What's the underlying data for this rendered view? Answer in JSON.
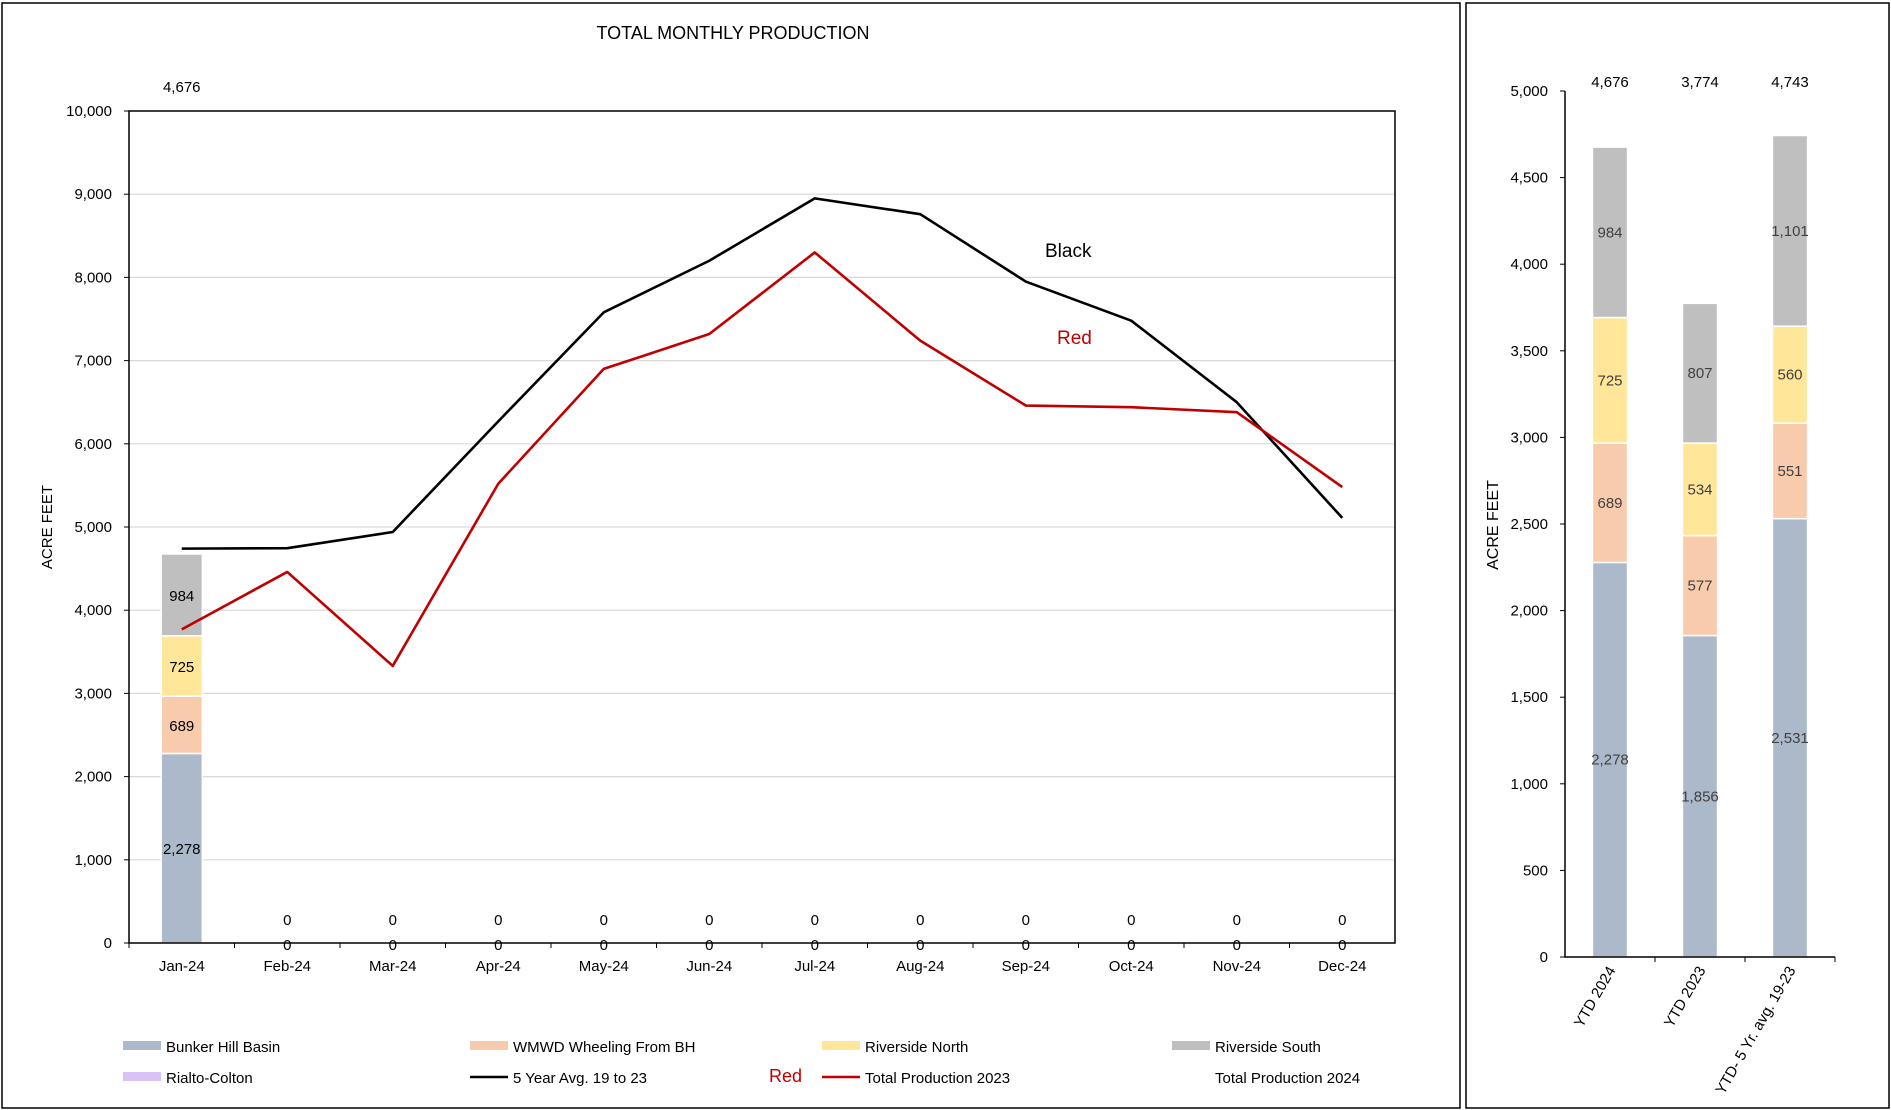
{
  "chart_data": [
    {
      "type": "bar",
      "title": "TOTAL MONTHLY PRODUCTION",
      "ylabel": "ACRE FEET",
      "ylim": [
        0,
        10000
      ],
      "yticks": [
        "0",
        "1,000",
        "2,000",
        "3,000",
        "4,000",
        "5,000",
        "6,000",
        "7,000",
        "8,000",
        "9,000",
        "10,000"
      ],
      "grid": true,
      "categories": [
        "Jan-24",
        "Feb-24",
        "Mar-24",
        "Apr-24",
        "May-24",
        "Jun-24",
        "Jul-24",
        "Aug-24",
        "Sep-24",
        "Oct-24",
        "Nov-24",
        "Dec-24"
      ],
      "stacked_series": [
        {
          "name": "Bunker Hill Basin",
          "color": "#acb9ca",
          "values": [
            2278,
            0,
            0,
            0,
            0,
            0,
            0,
            0,
            0,
            0,
            0,
            0
          ],
          "labels": [
            "2,278",
            "0",
            "0",
            "0",
            "0",
            "0",
            "0",
            "0",
            "0",
            "0",
            "0",
            "0"
          ]
        },
        {
          "name": "WMWD Wheeling From BH",
          "color": "#f8cbad",
          "values": [
            689,
            0,
            0,
            0,
            0,
            0,
            0,
            0,
            0,
            0,
            0,
            0
          ],
          "labels": [
            "689",
            "",
            "",
            "",
            "",
            "",
            "",
            "",
            "",
            "",
            "",
            ""
          ]
        },
        {
          "name": "Riverside North",
          "color": "#ffe699",
          "values": [
            725,
            0,
            0,
            0,
            0,
            0,
            0,
            0,
            0,
            0,
            0,
            0
          ],
          "labels": [
            "725",
            "",
            "",
            "",
            "",
            "",
            "",
            "",
            "",
            "",
            "",
            ""
          ]
        },
        {
          "name": "Riverside South",
          "color": "#bfbfbf",
          "values": [
            984,
            0,
            0,
            0,
            0,
            0,
            0,
            0,
            0,
            0,
            0,
            0
          ],
          "labels": [
            "984",
            "0",
            "0",
            "0",
            "0",
            "0",
            "0",
            "0",
            "0",
            "0",
            "0",
            "0"
          ]
        },
        {
          "name": "Rialto-Colton",
          "color": "#d9c3f5",
          "values": [
            0,
            0,
            0,
            0,
            0,
            0,
            0,
            0,
            0,
            0,
            0,
            0
          ]
        }
      ],
      "total_labels": [
        "4,676"
      ],
      "line_series": [
        {
          "name": "5 Year Avg. 19 to 23",
          "color": "#000000",
          "values": [
            4740,
            4745,
            4940,
            6270,
            7580,
            8200,
            8950,
            8760,
            7950,
            7480,
            6500,
            5110
          ]
        },
        {
          "name": "Total Production 2023",
          "color": "#c00000",
          "values": [
            3770,
            4460,
            3330,
            5520,
            6900,
            7320,
            8300,
            7240,
            6460,
            6440,
            6380,
            5480
          ]
        }
      ],
      "annotations": [
        {
          "text": "Black",
          "color": "#000000"
        },
        {
          "text": "Red",
          "color": "#c00000"
        }
      ],
      "legend": {
        "placement": "bottom",
        "items": [
          {
            "label": "Bunker Hill Basin",
            "kind": "swatch",
            "color": "#acb9ca"
          },
          {
            "label": "WMWD Wheeling From BH",
            "kind": "swatch",
            "color": "#f8cbad"
          },
          {
            "label": "Riverside North",
            "kind": "swatch",
            "color": "#ffe699"
          },
          {
            "label": "Riverside South",
            "kind": "swatch",
            "color": "#bfbfbf"
          },
          {
            "label": "Rialto-Colton",
            "kind": "swatch",
            "color": "#d9c3f5"
          },
          {
            "label": "5 Year Avg. 19 to 23",
            "kind": "line",
            "color": "#000000"
          },
          {
            "label": "Total Production 2023",
            "kind": "line",
            "color": "#c00000",
            "prefix": "Red"
          },
          {
            "label": "Total Production 2024",
            "kind": "none",
            "color": "#000000"
          }
        ]
      }
    },
    {
      "type": "bar",
      "ylabel": "ACRE FEET",
      "ylim": [
        0,
        5000
      ],
      "yticks": [
        "0",
        "500",
        "1,000",
        "1,500",
        "2,000",
        "2,500",
        "3,000",
        "3,500",
        "4,000",
        "4,500",
        "5,000"
      ],
      "grid": false,
      "categories": [
        "YTD 2024",
        "YTD 2023",
        "YTD- 5 Yr. avg. 19-23"
      ],
      "series": [
        {
          "name": "Bunker Hill Basin",
          "color": "#acb9ca",
          "values": [
            2278,
            1856,
            2531
          ],
          "labels": [
            "2,278",
            "1,856",
            "2,531"
          ]
        },
        {
          "name": "WMWD Wheeling From BH",
          "color": "#f8cbad",
          "values": [
            689,
            577,
            551
          ],
          "labels": [
            "689",
            "577",
            "551"
          ]
        },
        {
          "name": "Riverside North",
          "color": "#ffe699",
          "values": [
            725,
            534,
            560
          ],
          "labels": [
            "725",
            "534",
            "560"
          ]
        },
        {
          "name": "Riverside South",
          "color": "#bfbfbf",
          "values": [
            984,
            807,
            1101
          ],
          "labels": [
            "984",
            "807",
            "1,101"
          ]
        }
      ],
      "total_labels": [
        "4,676",
        "3,774",
        "4,743"
      ]
    }
  ]
}
